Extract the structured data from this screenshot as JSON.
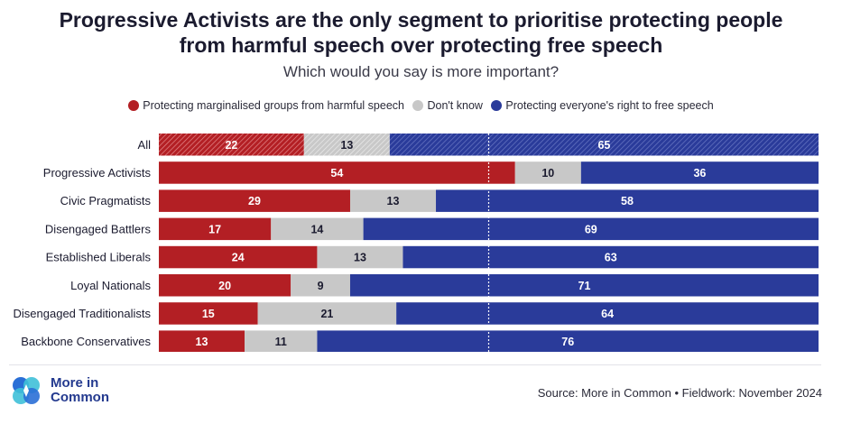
{
  "title_line1": "Progressive Activists are the only segment to prioritise protecting people",
  "title_line2": "from harmful speech over protecting free speech",
  "subtitle": "Which would you say is more important?",
  "legend": [
    {
      "label": "Protecting marginalised groups from harmful speech",
      "color": "#b31f24"
    },
    {
      "label": "Don't know",
      "color": "#c8c8c8"
    },
    {
      "label": "Protecting everyone's right to free speech",
      "color": "#2a3b9a"
    }
  ],
  "footer": {
    "logo_text_line1": "More in",
    "logo_text_line2": "Common",
    "source": "Source: More in Common • Fieldwork: November 2024"
  },
  "chart_data": {
    "type": "bar",
    "orientation": "horizontal",
    "stacked": true,
    "categories": [
      "All",
      "Progressive Activists",
      "Civic Pragmatists",
      "Disengaged Battlers",
      "Established Liberals",
      "Loyal Nationals",
      "Disengaged Traditionalists",
      "Backbone Conservatives"
    ],
    "series": [
      {
        "name": "Protecting marginalised groups from harmful speech",
        "color": "#b31f24",
        "values": [
          22,
          54,
          29,
          17,
          24,
          20,
          15,
          13
        ]
      },
      {
        "name": "Don't know",
        "color": "#c8c8c8",
        "values": [
          13,
          10,
          13,
          14,
          13,
          9,
          21,
          11
        ]
      },
      {
        "name": "Protecting everyone's right to free speech",
        "color": "#2a3b9a",
        "values": [
          65,
          36,
          58,
          69,
          63,
          71,
          64,
          76
        ]
      }
    ],
    "xlim": [
      0,
      100
    ],
    "reference_line_x": 50,
    "highlighted_category": "All",
    "legend_position": "top-center",
    "grid": false
  }
}
